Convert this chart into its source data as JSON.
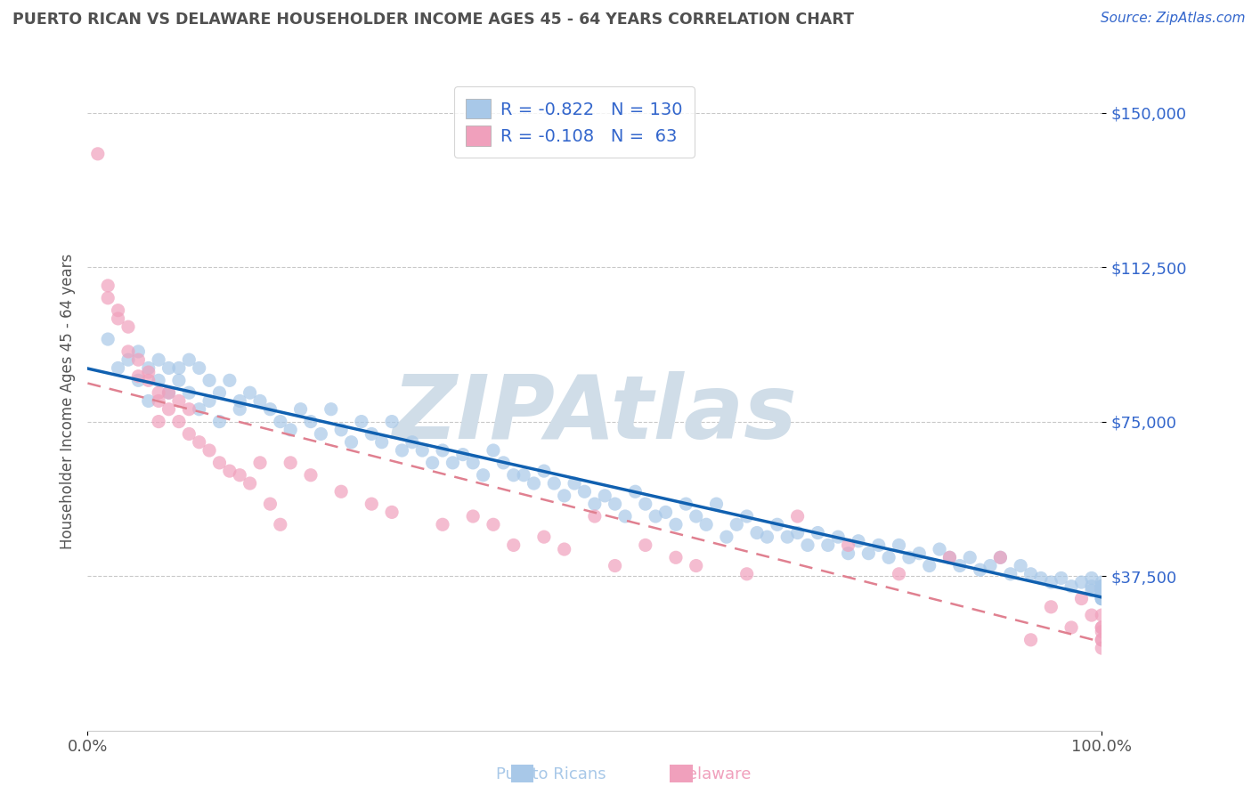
{
  "title": "PUERTO RICAN VS DELAWARE HOUSEHOLDER INCOME AGES 45 - 64 YEARS CORRELATION CHART",
  "source": "Source: ZipAtlas.com",
  "ylabel": "Householder Income Ages 45 - 64 years",
  "xlim": [
    0,
    100
  ],
  "ylim": [
    0,
    160000
  ],
  "yticks": [
    37500,
    75000,
    112500,
    150000
  ],
  "ytick_labels": [
    "$37,500",
    "$75,000",
    "$112,500",
    "$150,000"
  ],
  "xticks": [
    0,
    100
  ],
  "xtick_labels": [
    "0.0%",
    "100.0%"
  ],
  "legend_r1": "R = -0.822",
  "legend_n1": "N = 130",
  "legend_r2": "R = -0.108",
  "legend_n2": "N =  63",
  "color_blue": "#a8c8e8",
  "color_pink": "#f0a0bc",
  "color_blue_line": "#1060b0",
  "color_pink_line": "#e08090",
  "watermark": "ZIPAtlas",
  "watermark_color": "#d0dde8",
  "title_color": "#505050",
  "source_color": "#3366cc",
  "axis_label_color": "#555555",
  "blue_x": [
    2,
    3,
    4,
    5,
    5,
    6,
    6,
    7,
    7,
    8,
    8,
    9,
    9,
    10,
    10,
    11,
    11,
    12,
    12,
    13,
    13,
    14,
    15,
    15,
    16,
    17,
    18,
    19,
    20,
    21,
    22,
    23,
    24,
    25,
    26,
    27,
    28,
    29,
    30,
    31,
    32,
    33,
    34,
    35,
    36,
    37,
    38,
    39,
    40,
    41,
    42,
    43,
    44,
    45,
    46,
    47,
    48,
    49,
    50,
    51,
    52,
    53,
    54,
    55,
    56,
    57,
    58,
    59,
    60,
    61,
    62,
    63,
    64,
    65,
    66,
    67,
    68,
    69,
    70,
    71,
    72,
    73,
    74,
    75,
    76,
    77,
    78,
    79,
    80,
    81,
    82,
    83,
    84,
    85,
    86,
    87,
    88,
    89,
    90,
    91,
    92,
    93,
    94,
    95,
    96,
    97,
    98,
    99,
    99,
    99,
    100,
    100,
    100,
    100,
    100,
    100,
    100,
    100,
    100,
    100,
    100,
    100,
    100,
    100,
    100,
    100,
    100,
    100,
    100,
    100
  ],
  "blue_y": [
    95000,
    88000,
    90000,
    92000,
    85000,
    88000,
    80000,
    90000,
    85000,
    88000,
    82000,
    88000,
    85000,
    90000,
    82000,
    88000,
    78000,
    85000,
    80000,
    82000,
    75000,
    85000,
    80000,
    78000,
    82000,
    80000,
    78000,
    75000,
    73000,
    78000,
    75000,
    72000,
    78000,
    73000,
    70000,
    75000,
    72000,
    70000,
    75000,
    68000,
    70000,
    68000,
    65000,
    68000,
    65000,
    67000,
    65000,
    62000,
    68000,
    65000,
    62000,
    62000,
    60000,
    63000,
    60000,
    57000,
    60000,
    58000,
    55000,
    57000,
    55000,
    52000,
    58000,
    55000,
    52000,
    53000,
    50000,
    55000,
    52000,
    50000,
    55000,
    47000,
    50000,
    52000,
    48000,
    47000,
    50000,
    47000,
    48000,
    45000,
    48000,
    45000,
    47000,
    43000,
    46000,
    43000,
    45000,
    42000,
    45000,
    42000,
    43000,
    40000,
    44000,
    42000,
    40000,
    42000,
    39000,
    40000,
    42000,
    38000,
    40000,
    38000,
    37000,
    36000,
    37000,
    35000,
    36000,
    35000,
    37000,
    34000,
    36000,
    35000,
    33000,
    35000,
    34000,
    33000,
    35000,
    34000,
    33000,
    32000,
    34000,
    33000,
    32000,
    35000,
    33000,
    32000,
    34000,
    33000,
    32000,
    32500
  ],
  "pink_x": [
    1,
    2,
    2,
    3,
    3,
    4,
    4,
    5,
    5,
    6,
    6,
    7,
    7,
    7,
    8,
    8,
    9,
    9,
    10,
    10,
    11,
    12,
    13,
    14,
    15,
    16,
    17,
    18,
    19,
    20,
    22,
    25,
    28,
    30,
    35,
    38,
    40,
    42,
    45,
    47,
    50,
    52,
    55,
    58,
    60,
    65,
    70,
    75,
    80,
    85,
    90,
    93,
    95,
    97,
    98,
    99,
    100,
    100,
    100,
    100,
    100,
    100,
    100
  ],
  "pink_y": [
    140000,
    108000,
    105000,
    102000,
    100000,
    98000,
    92000,
    90000,
    86000,
    85000,
    87000,
    82000,
    80000,
    75000,
    82000,
    78000,
    80000,
    75000,
    78000,
    72000,
    70000,
    68000,
    65000,
    63000,
    62000,
    60000,
    65000,
    55000,
    50000,
    65000,
    62000,
    58000,
    55000,
    53000,
    50000,
    52000,
    50000,
    45000,
    47000,
    44000,
    52000,
    40000,
    45000,
    42000,
    40000,
    38000,
    52000,
    45000,
    38000,
    42000,
    42000,
    22000,
    30000,
    25000,
    32000,
    28000,
    25000,
    22000,
    24000,
    28000,
    22000,
    25000,
    20000
  ]
}
